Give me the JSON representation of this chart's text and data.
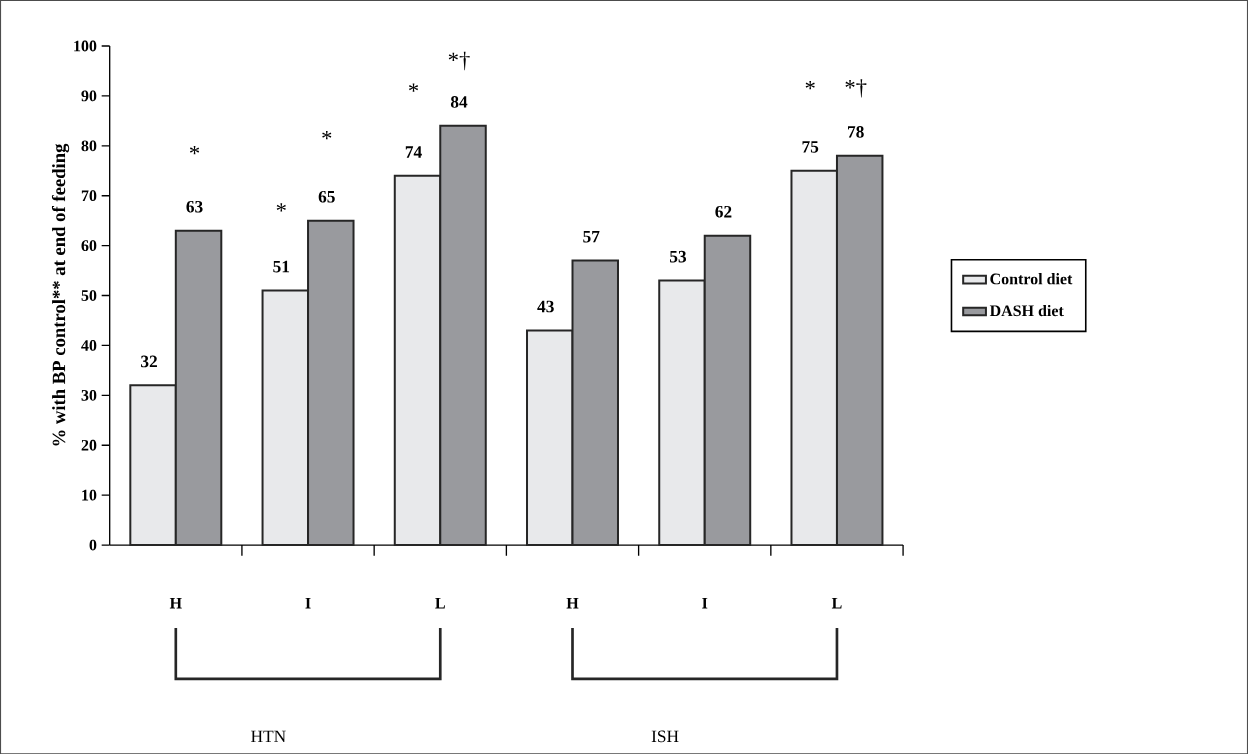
{
  "chart_data": {
    "type": "bar",
    "ylabel": "% with BP control** at end of feeding",
    "categories": [
      "H",
      "I",
      "L",
      "H",
      "I",
      "L"
    ],
    "series": [
      {
        "name": "Control diet",
        "color": "#e8e9eb",
        "values": [
          32,
          51,
          74,
          43,
          53,
          75
        ]
      },
      {
        "name": "DASH diet",
        "color": "#999a9e",
        "values": [
          63,
          65,
          84,
          57,
          62,
          78
        ]
      }
    ],
    "ylim": [
      0,
      100
    ],
    "yticks": [
      0,
      10,
      20,
      30,
      40,
      50,
      60,
      70,
      80,
      90,
      100
    ],
    "data_labels": true,
    "legend": "right",
    "grid": false,
    "annotations": [
      "*",
      "*",
      "*",
      "*",
      "*†",
      "*",
      "*†",
      "HTN",
      "ISH"
    ]
  }
}
